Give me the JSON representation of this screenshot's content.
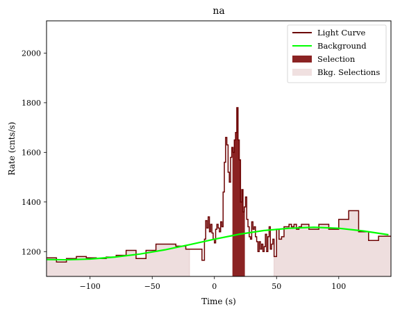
{
  "chart_data": {
    "type": "line",
    "title": "na",
    "xlabel": "Time (s)",
    "ylabel": "Rate (cnts/s)",
    "xlim": [
      -135,
      142
    ],
    "ylim": [
      1100,
      2130
    ],
    "xticks": [
      -100,
      -50,
      0,
      50,
      100
    ],
    "xtick_labels": [
      "−100",
      "−50",
      "0",
      "50",
      "100"
    ],
    "yticks": [
      1200,
      1400,
      1600,
      1800,
      2000
    ],
    "ytick_labels": [
      "1200",
      "1400",
      "1600",
      "1800",
      "2000"
    ],
    "legend": {
      "placement": "top-right",
      "entries": [
        {
          "label": "Light Curve",
          "kind": "line",
          "color": "#6b0000"
        },
        {
          "label": "Background",
          "kind": "line",
          "color": "#00ff00"
        },
        {
          "label": "Selection",
          "kind": "patch",
          "color": "#8b2323"
        },
        {
          "label": "Bkg. Selections",
          "kind": "patch",
          "color": "#f0e0e0"
        }
      ]
    },
    "colors": {
      "light_curve": "#6b0000",
      "background": "#00ff00",
      "selection": "#8b2323",
      "bkg_selection": "#eedede",
      "bkg_selection_edge": "#e2c6c6"
    },
    "bkg_selections": [
      [
        -135,
        -20
      ],
      [
        48,
        142
      ]
    ],
    "selection": [
      14.5,
      24.5
    ],
    "background_curve": {
      "x": [
        -135,
        -120,
        -100,
        -80,
        -60,
        -40,
        -20,
        0,
        20,
        40,
        60,
        80,
        100,
        120,
        140
      ],
      "y": [
        1168,
        1167,
        1170,
        1178,
        1190,
        1207,
        1228,
        1250,
        1270,
        1285,
        1294,
        1298,
        1294,
        1283,
        1268
      ]
    },
    "light_curve": {
      "x": [
        -135,
        -127,
        -119,
        -111,
        -103,
        -95,
        -87,
        -79,
        -71,
        -63,
        -55,
        -47,
        -39,
        -31,
        -23,
        -19,
        -10,
        -8,
        -7,
        -6,
        -5,
        -4,
        -3,
        -2,
        -1,
        0,
        1,
        2,
        3,
        4,
        5,
        6,
        7,
        8,
        9,
        10,
        11,
        12,
        13,
        14,
        15,
        16,
        17,
        18,
        19,
        20,
        21,
        22,
        23,
        24,
        25,
        26,
        27,
        28,
        29,
        30,
        31,
        32,
        33,
        34,
        35,
        36,
        37,
        38,
        39,
        40,
        41,
        42,
        43,
        44,
        45,
        46,
        47,
        48,
        50,
        52,
        54,
        56,
        58,
        60,
        62,
        64,
        66,
        68,
        70,
        76,
        84,
        92,
        100,
        108,
        116,
        124,
        132,
        142
      ],
      "y": [
        1175,
        1158,
        1172,
        1180,
        1175,
        1172,
        1178,
        1185,
        1205,
        1172,
        1205,
        1230,
        1230,
        1222,
        1210,
        1210,
        1165,
        1250,
        1325,
        1295,
        1340,
        1280,
        1310,
        1275,
        1250,
        1235,
        1290,
        1310,
        1295,
        1280,
        1320,
        1300,
        1440,
        1560,
        1660,
        1630,
        1520,
        1480,
        1580,
        1620,
        1600,
        1650,
        1680,
        1780,
        1650,
        1570,
        1400,
        1450,
        1360,
        1380,
        1420,
        1330,
        1300,
        1260,
        1250,
        1320,
        1290,
        1300,
        1260,
        1240,
        1200,
        1240,
        1210,
        1230,
        1200,
        1220,
        1270,
        1200,
        1260,
        1300,
        1210,
        1230,
        1250,
        1180,
        1290,
        1250,
        1260,
        1300,
        1300,
        1310,
        1300,
        1310,
        1290,
        1300,
        1310,
        1290,
        1310,
        1290,
        1330,
        1365,
        1280,
        1245,
        1262,
        1262
      ]
    }
  }
}
